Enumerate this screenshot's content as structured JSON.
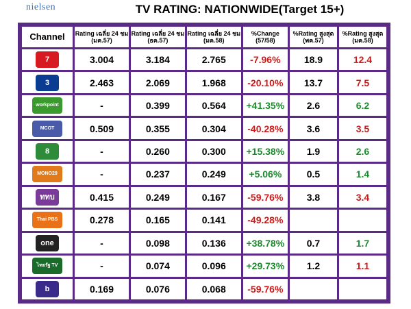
{
  "brand": "nielsen",
  "chart_data": {
    "type": "table",
    "title": "TV RATING: NATIONWIDE(Target 15+)",
    "columns": [
      "Channel",
      "Rating เฉลี่ย 24 ชม (มค.57)",
      "Rating เฉลี่ย 24 ชม (ธค.57)",
      "Rating เฉลี่ย 24 ชม (มค.58)",
      "%Change (57/58)",
      "%Rating สูงสุด (พค.57)",
      "%Rating สูงสุด (มค.58)"
    ],
    "rows": [
      {
        "channel": "7",
        "logo_color": "#d71920",
        "r_jan57": "3.004",
        "r_dec57": "3.184",
        "r_jan58": "2.765",
        "change": "-7.96%",
        "peak57": "18.9",
        "peak58": "12.4",
        "change_sign": "neg",
        "peak58_color": "red"
      },
      {
        "channel": "3",
        "logo_color": "#0a3d91",
        "r_jan57": "2.463",
        "r_dec57": "2.069",
        "r_jan58": "1.968",
        "change": "-20.10%",
        "peak57": "13.7",
        "peak58": "7.5",
        "change_sign": "neg",
        "peak58_color": "red"
      },
      {
        "channel": "workpoint",
        "logo_color": "#3b9a2e",
        "r_jan57": "-",
        "r_dec57": "0.399",
        "r_jan58": "0.564",
        "change": "+41.35%",
        "peak57": "2.6",
        "peak58": "6.2",
        "change_sign": "pos",
        "peak58_color": "green"
      },
      {
        "channel": "MCOT",
        "logo_color": "#4a5aa8",
        "r_jan57": "0.509",
        "r_dec57": "0.355",
        "r_jan58": "0.304",
        "change": "-40.28%",
        "peak57": "3.6",
        "peak58": "3.5",
        "change_sign": "neg",
        "peak58_color": "red"
      },
      {
        "channel": "8",
        "logo_color": "#2e8b3a",
        "r_jan57": "-",
        "r_dec57": "0.260",
        "r_jan58": "0.300",
        "change": "+15.38%",
        "peak57": "1.9",
        "peak58": "2.6",
        "change_sign": "pos",
        "peak58_color": "green"
      },
      {
        "channel": "MONO29",
        "logo_color": "#e07a1a",
        "r_jan57": "-",
        "r_dec57": "0.237",
        "r_jan58": "0.249",
        "change": "+5.06%",
        "peak57": "0.5",
        "peak58": "1.4",
        "change_sign": "pos",
        "peak58_color": "green"
      },
      {
        "channel": "ททบ",
        "logo_color": "#7a3a9a",
        "r_jan57": "0.415",
        "r_dec57": "0.249",
        "r_jan58": "0.167",
        "change": "-59.76%",
        "peak57": "3.8",
        "peak58": "3.4",
        "change_sign": "neg",
        "peak58_color": "red"
      },
      {
        "channel": "Thai PBS",
        "logo_color": "#e8711a",
        "r_jan57": "0.278",
        "r_dec57": "0.165",
        "r_jan58": "0.141",
        "change": "-49.28%",
        "peak57": "",
        "peak58": "",
        "change_sign": "neg",
        "peak58_color": "red"
      },
      {
        "channel": "one",
        "logo_color": "#222222",
        "r_jan57": "-",
        "r_dec57": "0.098",
        "r_jan58": "0.136",
        "change": "+38.78%",
        "peak57": "0.7",
        "peak58": "1.7",
        "change_sign": "pos",
        "peak58_color": "green"
      },
      {
        "channel": "ไทยรัฐ TV",
        "logo_color": "#1a6a2a",
        "r_jan57": "-",
        "r_dec57": "0.074",
        "r_jan58": "0.096",
        "change": "+29.73%",
        "peak57": "1.2",
        "peak58": "1.1",
        "change_sign": "pos",
        "peak58_color": "red"
      },
      {
        "channel": "b",
        "logo_color": "#3a2a8a",
        "r_jan57": "0.169",
        "r_dec57": "0.076",
        "r_jan58": "0.068",
        "change": "-59.76%",
        "peak57": "",
        "peak58": "",
        "change_sign": "neg",
        "peak58_color": "red"
      }
    ]
  }
}
